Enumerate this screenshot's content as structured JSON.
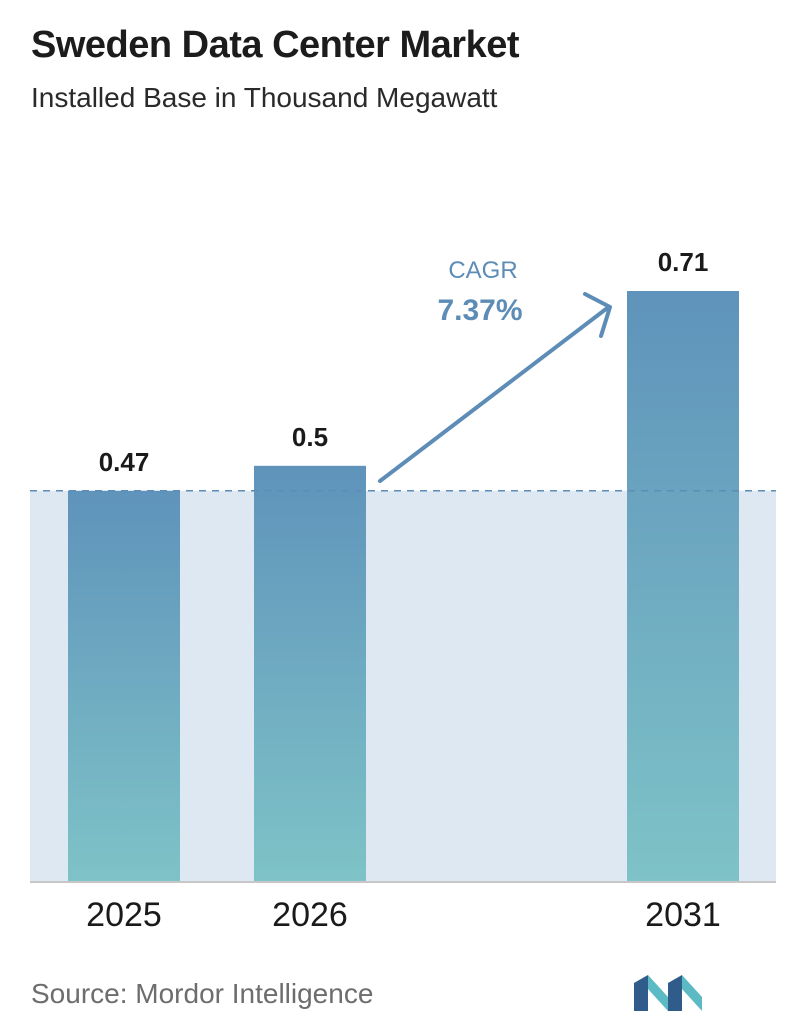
{
  "header": {
    "title": "Sweden Data Center Market",
    "subtitle": "Installed Base in Thousand Megawatt"
  },
  "cagr": {
    "label": "CAGR",
    "value": "7.37%"
  },
  "footer": {
    "source": "Source:  Mordor Intelligence"
  },
  "colors": {
    "bar_top": "#5f93bb",
    "bar_bottom": "#7ec3c7",
    "band": "#dde8f2",
    "accent": "#5d8cb6",
    "axis": "#c7c7c7",
    "logo_dark": "#2f5c8a",
    "logo_light": "#5bbac4"
  },
  "chart_data": {
    "type": "bar",
    "title": "Sweden Data Center Market",
    "subtitle": "Installed Base in Thousand Megawatt",
    "categories": [
      "2025",
      "2026",
      "2031"
    ],
    "values": [
      0.47,
      0.5,
      0.71
    ],
    "data_labels": [
      "0.47",
      "0.5",
      "0.71"
    ],
    "annotation": "CAGR 7.37%",
    "reference_line": 0.47,
    "ylim": [
      0,
      0.71
    ],
    "grid": false
  }
}
